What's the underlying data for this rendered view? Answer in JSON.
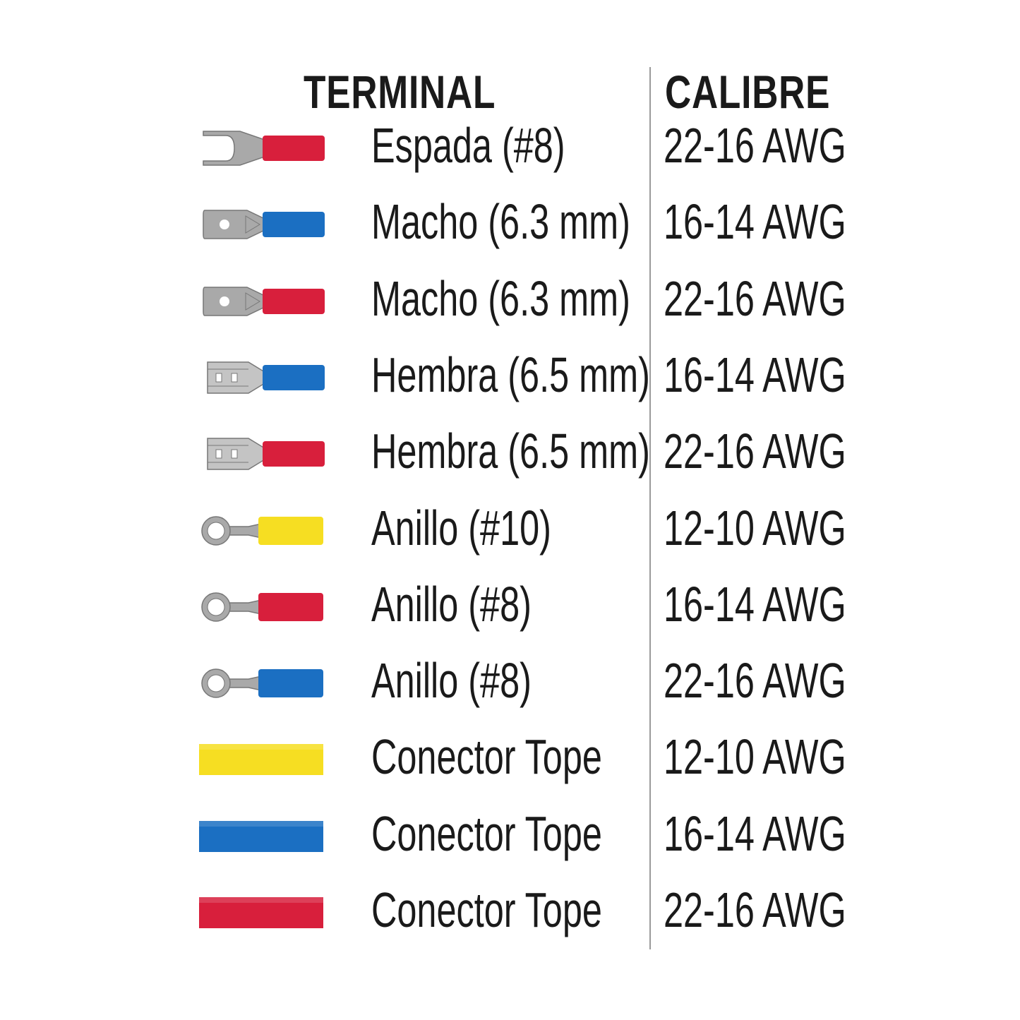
{
  "headers": {
    "terminal": "TERMINAL",
    "calibre": "CALIBRE"
  },
  "colors": {
    "red": "#d81f3c",
    "blue": "#1b6fc2",
    "yellow": "#f6de22",
    "metal": "#a9a9a9"
  },
  "rows": [
    {
      "icon": "spade-terminal-icon",
      "color": "red",
      "name": "Espada (#8)",
      "gauge": "22-16 AWG"
    },
    {
      "icon": "male-terminal-icon",
      "color": "blue",
      "name": "Macho (6.3 mm)",
      "gauge": "16-14 AWG"
    },
    {
      "icon": "male-terminal-icon",
      "color": "red",
      "name": "Macho (6.3 mm)",
      "gauge": "22-16 AWG"
    },
    {
      "icon": "female-terminal-icon",
      "color": "blue",
      "name": "Hembra (6.5 mm)",
      "gauge": "16-14 AWG"
    },
    {
      "icon": "female-terminal-icon",
      "color": "red",
      "name": "Hembra (6.5 mm)",
      "gauge": "22-16 AWG"
    },
    {
      "icon": "ring-terminal-icon",
      "color": "yellow",
      "name": "Anillo (#10)",
      "gauge": "12-10 AWG"
    },
    {
      "icon": "ring-terminal-icon",
      "color": "red",
      "name": "Anillo (#8)",
      "gauge": "16-14 AWG"
    },
    {
      "icon": "ring-terminal-icon",
      "color": "blue",
      "name": "Anillo (#8)",
      "gauge": "22-16 AWG"
    },
    {
      "icon": "butt-connector-icon",
      "color": "yellow",
      "name": "Conector Tope",
      "gauge": "12-10 AWG"
    },
    {
      "icon": "butt-connector-icon",
      "color": "blue",
      "name": "Conector Tope",
      "gauge": "16-14 AWG"
    },
    {
      "icon": "butt-connector-icon",
      "color": "red",
      "name": "Conector Tope",
      "gauge": "22-16 AWG"
    }
  ]
}
